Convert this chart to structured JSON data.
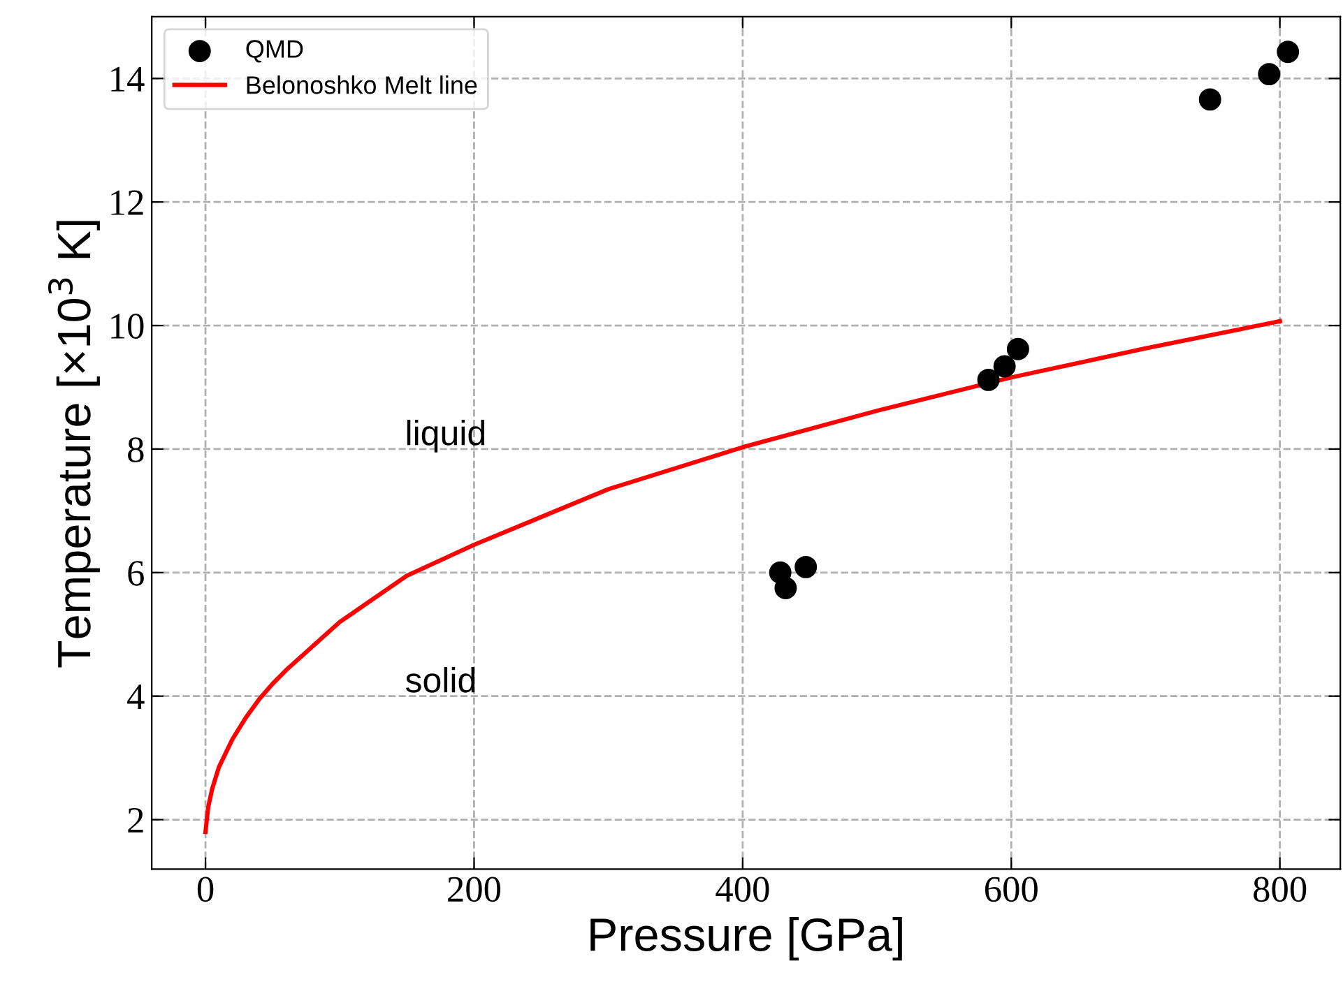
{
  "chart_data": {
    "type": "scatter",
    "xlabel": "Pressure [GPa]",
    "ylabel": "Temperature [×10$^{3}$ K]",
    "xlim": [
      -40,
      845
    ],
    "ylim": [
      1.2,
      15.0
    ],
    "xticks": [
      0,
      200,
      400,
      600,
      800
    ],
    "yticks": [
      2,
      4,
      6,
      8,
      10,
      12,
      14
    ],
    "grid": true,
    "legend": "top left",
    "series": [
      {
        "name": "QMD",
        "color": "#000000",
        "marker": "circle",
        "x": [
          428,
          432,
          447,
          583,
          595,
          605,
          748,
          792,
          806
        ],
        "values": [
          6.0,
          5.75,
          6.09,
          9.12,
          9.34,
          9.62,
          13.66,
          14.07,
          14.43
        ]
      },
      {
        "name": "Belonoshko Melt line",
        "type": "line",
        "color": "#ff0000",
        "marker": "none",
        "line_style": "solid",
        "x": [
          0,
          2,
          5,
          10,
          20,
          30,
          40,
          50,
          60,
          100,
          150,
          200,
          300,
          400,
          500,
          600,
          700,
          800
        ],
        "values": [
          1.8,
          2.2,
          2.5,
          2.85,
          3.3,
          3.65,
          3.95,
          4.2,
          4.42,
          5.2,
          5.95,
          6.45,
          7.35,
          8.03,
          8.62,
          9.16,
          9.63,
          10.07
        ]
      }
    ],
    "annotations": [
      "liquid",
      "solid"
    ]
  }
}
